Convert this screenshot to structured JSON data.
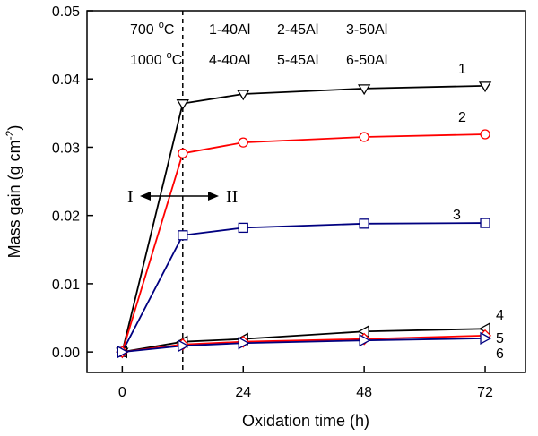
{
  "chart_data": {
    "type": "line",
    "xlabel": "Oxidation time (h)",
    "ylabel": "Mass gain (g cm",
    "ylabel_sup": "-2",
    "ylabel_close": ")",
    "xlim": [
      -7,
      80
    ],
    "ylim": [
      -0.003,
      0.05
    ],
    "xticks": [
      0,
      24,
      48,
      72
    ],
    "xtick_labels": [
      "0",
      "24",
      "48",
      "72"
    ],
    "yticks": [
      0.0,
      0.01,
      0.02,
      0.03,
      0.04,
      0.05
    ],
    "ytick_labels": [
      "0.00",
      "0.01",
      "0.02",
      "0.03",
      "0.04",
      "0.05"
    ],
    "legend": {
      "row1_temp": "700",
      "row1_unit": "C",
      "row1_items": [
        "1-40Al",
        "2-45Al",
        "3-50Al"
      ],
      "row2_temp": "1000",
      "row2_unit": "C",
      "row2_items": [
        "4-40Al",
        "5-45Al",
        "6-50Al"
      ],
      "degree": "o"
    },
    "divider_x": 12,
    "phase_labels": [
      "I",
      "II"
    ],
    "series": [
      {
        "name": "1",
        "color": "#000000",
        "marker": "triangle-down",
        "x": [
          0,
          12,
          24,
          48,
          72
        ],
        "y": [
          0.0,
          0.0364,
          0.0378,
          0.0386,
          0.039
        ]
      },
      {
        "name": "2",
        "color": "#ff0000",
        "marker": "circle",
        "x": [
          0,
          12,
          24,
          48,
          72
        ],
        "y": [
          0.0,
          0.0291,
          0.0307,
          0.0315,
          0.0319
        ]
      },
      {
        "name": "3",
        "color": "#000080",
        "marker": "square",
        "x": [
          0,
          12,
          24,
          48,
          72
        ],
        "y": [
          0.0,
          0.0171,
          0.0182,
          0.0188,
          0.0189
        ]
      },
      {
        "name": "4",
        "color": "#000000",
        "marker": "triangle-left",
        "x": [
          0,
          12,
          24,
          48,
          72
        ],
        "y": [
          0.0,
          0.0015,
          0.0019,
          0.003,
          0.0034
        ]
      },
      {
        "name": "5",
        "color": "#ff0000",
        "marker": "diamond",
        "x": [
          0,
          12,
          24,
          48,
          72
        ],
        "y": [
          0.0,
          0.0011,
          0.0015,
          0.0019,
          0.0024
        ]
      },
      {
        "name": "6",
        "color": "#000080",
        "marker": "triangle-right",
        "x": [
          0,
          12,
          24,
          48,
          72
        ],
        "y": [
          0.0,
          0.0009,
          0.0013,
          0.0017,
          0.002
        ]
      }
    ]
  }
}
